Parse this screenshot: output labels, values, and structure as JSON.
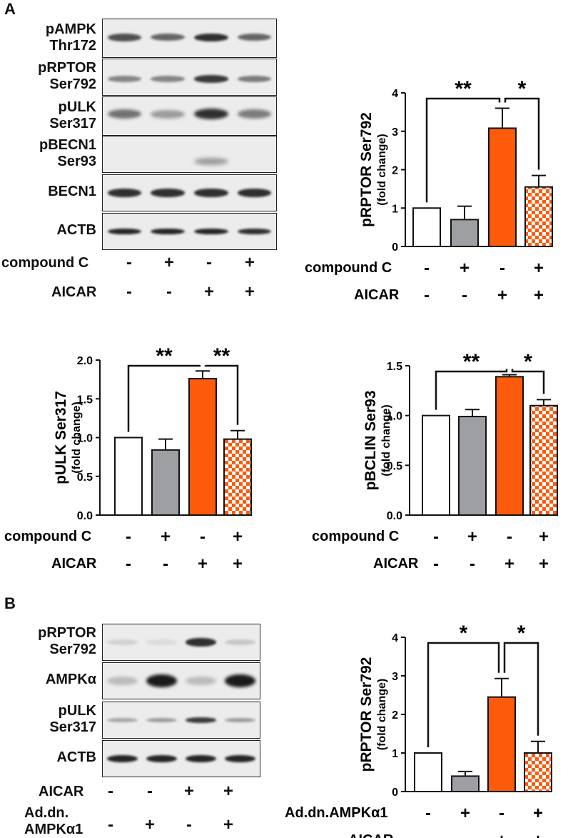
{
  "panel_a": {
    "letter": "A",
    "blot_labels": [
      "pAMPK\nThr172",
      "pRPTOR\nSer792",
      "pULK\nSer317",
      "pBECN1\nSer93",
      "BECN1",
      "ACTB"
    ],
    "conditions": [
      {
        "label": "compound C",
        "signs": [
          "-",
          "+",
          "-",
          "+"
        ]
      },
      {
        "label": "AICAR",
        "signs": [
          "-",
          "-",
          "+",
          "+"
        ]
      }
    ]
  },
  "panel_b": {
    "letter": "B",
    "blot_labels": [
      "pRPTOR\nSer792",
      "AMPKα",
      "pULK\nSer317",
      "ACTB"
    ],
    "conditions": [
      {
        "label": "AICAR",
        "signs": [
          "-",
          "-",
          "+",
          "+"
        ]
      },
      {
        "label": "Ad.dn.\nAMPKα1",
        "signs": [
          "-",
          "+",
          "-",
          "+"
        ]
      }
    ]
  },
  "chart_data": [
    {
      "type": "bar",
      "ylabel": "pRPTOR Ser792",
      "ylabel_sub": "(fold change)",
      "ylim": [
        0,
        4
      ],
      "yticks": [
        "0",
        "1",
        "2",
        "3",
        "4"
      ],
      "values": [
        1.0,
        0.7,
        3.08,
        1.55
      ],
      "errors": [
        0,
        0.35,
        0.52,
        0.3
      ],
      "bar_styles": [
        "white",
        "gray",
        "orange",
        "checker"
      ],
      "significance": [
        {
          "from": 0,
          "to": 2,
          "label": "**"
        },
        {
          "from": 2,
          "to": 3,
          "label": "*"
        }
      ],
      "conditions": [
        {
          "label": "compound C",
          "signs": [
            "-",
            "+",
            "-",
            "+"
          ]
        },
        {
          "label": "AICAR",
          "signs": [
            "-",
            "-",
            "+",
            "+"
          ]
        }
      ]
    },
    {
      "type": "bar",
      "ylabel": "pULK Ser317",
      "ylabel_sub": "(fold change)",
      "ylim": [
        0,
        2.0
      ],
      "yticks": [
        "0.0",
        "0.5",
        "1.0",
        "1.5",
        "2.0"
      ],
      "values": [
        1.0,
        0.84,
        1.76,
        0.98
      ],
      "errors": [
        0,
        0.14,
        0.1,
        0.11
      ],
      "bar_styles": [
        "white",
        "gray",
        "orange",
        "checker"
      ],
      "significance": [
        {
          "from": 0,
          "to": 2,
          "label": "**"
        },
        {
          "from": 2,
          "to": 3,
          "label": "**"
        }
      ],
      "conditions": [
        {
          "label": "compound C",
          "signs": [
            "-",
            "+",
            "-",
            "+"
          ]
        },
        {
          "label": "AICAR",
          "signs": [
            "-",
            "-",
            "+",
            "+"
          ]
        }
      ]
    },
    {
      "type": "bar",
      "ylabel": "pBCLIN Ser93",
      "ylabel_sub": "(fold change)",
      "ylim": [
        0,
        1.5
      ],
      "yticks": [
        "0.0",
        "0.5",
        "1.0",
        "1.5"
      ],
      "values": [
        1.0,
        0.99,
        1.39,
        1.1
      ],
      "errors": [
        0,
        0.07,
        0.02,
        0.06
      ],
      "bar_styles": [
        "white",
        "gray",
        "orange",
        "checker"
      ],
      "significance": [
        {
          "from": 0,
          "to": 2,
          "label": "**"
        },
        {
          "from": 2,
          "to": 3,
          "label": "*"
        }
      ],
      "conditions": [
        {
          "label": "compound C",
          "signs": [
            "-",
            "+",
            "-",
            "+"
          ]
        },
        {
          "label": "AICAR",
          "signs": [
            "-",
            "-",
            "+",
            "+"
          ]
        }
      ]
    },
    {
      "type": "bar",
      "ylabel": "pRPTOR Ser792",
      "ylabel_sub": "(fold change)",
      "ylim": [
        0,
        4
      ],
      "yticks": [
        "0",
        "1",
        "2",
        "3",
        "4"
      ],
      "values": [
        1.0,
        0.4,
        2.45,
        1.0
      ],
      "errors": [
        0,
        0.12,
        0.48,
        0.3
      ],
      "bar_styles": [
        "white",
        "gray",
        "orange",
        "checker"
      ],
      "significance": [
        {
          "from": 0,
          "to": 2,
          "label": "*"
        },
        {
          "from": 2,
          "to": 3,
          "label": "*"
        }
      ],
      "conditions": [
        {
          "label": "Ad.dn.AMPKα1",
          "signs": [
            "-",
            "+",
            "-",
            "+"
          ]
        },
        {
          "label": "AICAR",
          "signs": [
            "-",
            "-",
            "+",
            "+"
          ]
        }
      ]
    }
  ],
  "colors": {
    "orange": "#fb5b0a",
    "gray": "#9e9fa3",
    "white": "#ffffff",
    "axis": "#111111"
  }
}
